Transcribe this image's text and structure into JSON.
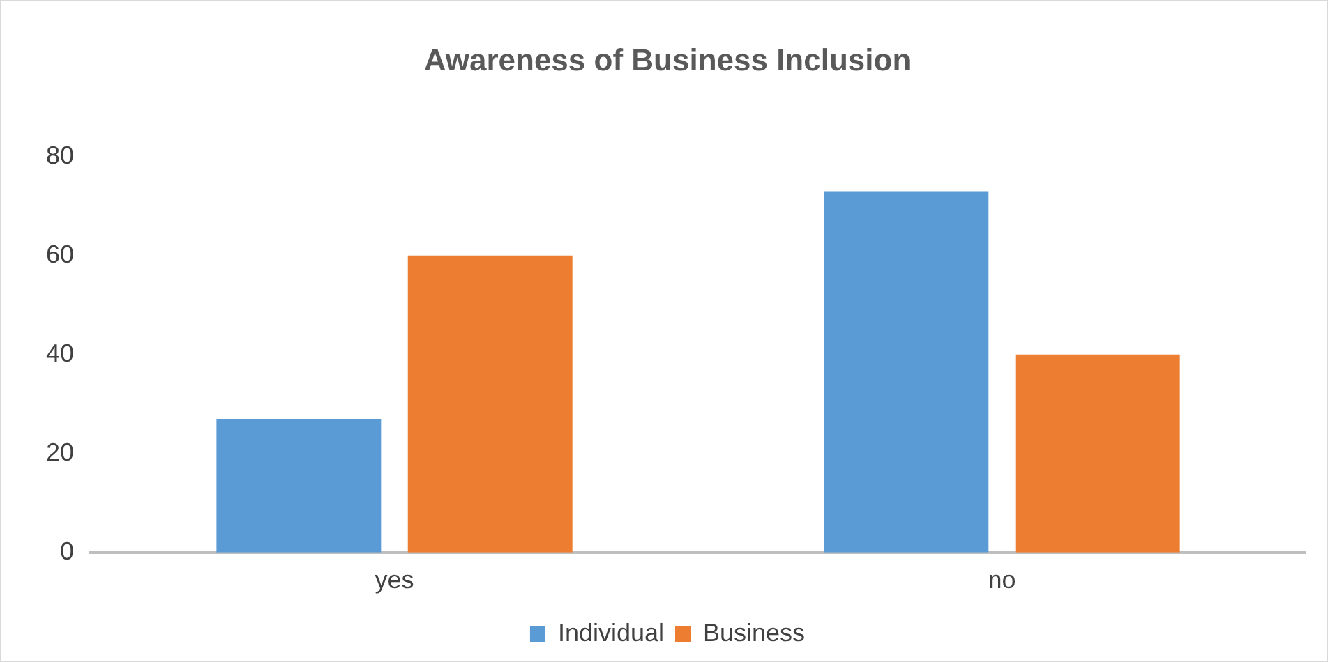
{
  "chart_data": {
    "type": "bar",
    "title": "Awareness of Business Inclusion",
    "categories": [
      "yes",
      "no"
    ],
    "series": [
      {
        "name": "Individual",
        "color": "#5b9bd5",
        "values": [
          27,
          73
        ]
      },
      {
        "name": "Business",
        "color": "#ed7d31",
        "values": [
          60,
          40
        ]
      }
    ],
    "ylim": [
      0,
      80
    ],
    "yticks": [
      0,
      20,
      40,
      60,
      80
    ],
    "grid": false,
    "legend": "bottom"
  }
}
